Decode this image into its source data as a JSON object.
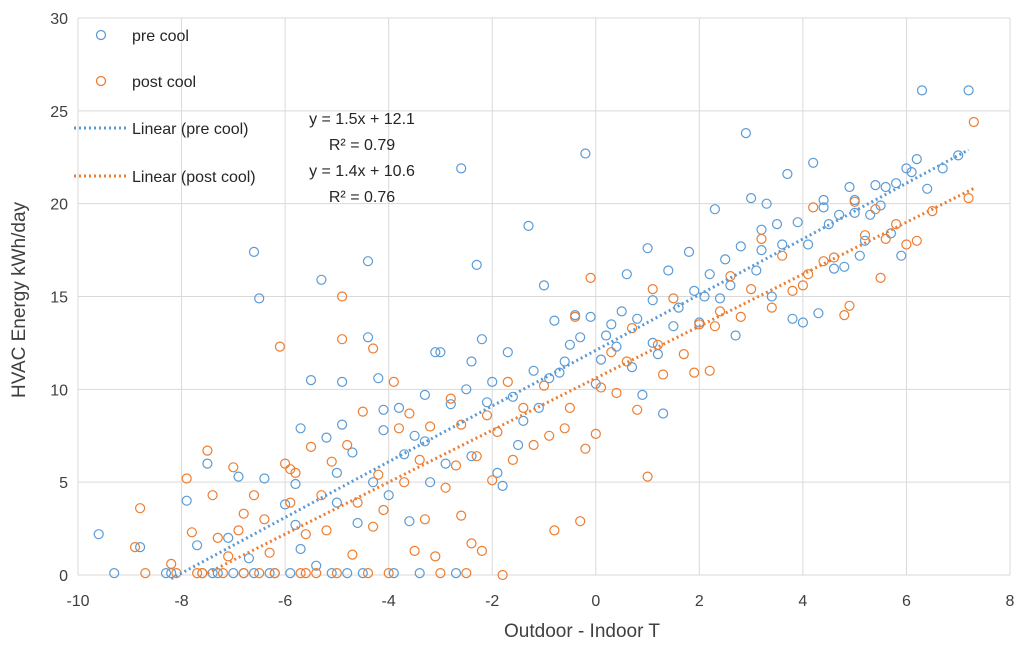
{
  "chart_data": {
    "type": "scatter",
    "title": "",
    "xlabel": "Outdoor - Indoor T",
    "ylabel": "HVAC Energy kWh/day",
    "xlim": [
      -10,
      8
    ],
    "ylim": [
      0,
      30
    ],
    "xticks": [
      -10,
      -8,
      -6,
      -4,
      -2,
      0,
      2,
      4,
      6,
      8
    ],
    "yticks": [
      0,
      5,
      10,
      15,
      20,
      25,
      30
    ],
    "grid": true,
    "legend_position": "top-left",
    "series": [
      {
        "name": "pre cool",
        "color": "#5b9bd5",
        "marker": "open-circle",
        "points": [
          [
            -9.6,
            2.2
          ],
          [
            -9.3,
            0.1
          ],
          [
            -8.8,
            1.5
          ],
          [
            -8.3,
            0.1
          ],
          [
            -8.2,
            0.1
          ],
          [
            -7.9,
            4.0
          ],
          [
            -7.7,
            1.6
          ],
          [
            -7.6,
            0.1
          ],
          [
            -7.5,
            6.0
          ],
          [
            -7.3,
            0.1
          ],
          [
            -7.1,
            2.0
          ],
          [
            -7.0,
            0.1
          ],
          [
            -6.9,
            5.3
          ],
          [
            -6.8,
            0.1
          ],
          [
            -6.7,
            0.9
          ],
          [
            -6.6,
            17.4
          ],
          [
            -6.5,
            14.9
          ],
          [
            -6.4,
            5.2
          ],
          [
            -6.3,
            0.1
          ],
          [
            -6.2,
            0.1
          ],
          [
            -6.0,
            3.8
          ],
          [
            -5.9,
            0.1
          ],
          [
            -5.8,
            4.9
          ],
          [
            -5.7,
            7.9
          ],
          [
            -5.7,
            1.4
          ],
          [
            -5.5,
            10.5
          ],
          [
            -5.4,
            0.5
          ],
          [
            -5.3,
            15.9
          ],
          [
            -5.2,
            7.4
          ],
          [
            -5.1,
            0.1
          ],
          [
            -5.0,
            5.5
          ],
          [
            -4.9,
            8.1
          ],
          [
            -4.9,
            10.4
          ],
          [
            -4.8,
            0.1
          ],
          [
            -4.7,
            6.6
          ],
          [
            -4.6,
            2.8
          ],
          [
            -4.5,
            0.1
          ],
          [
            -4.4,
            16.9
          ],
          [
            -4.4,
            12.8
          ],
          [
            -4.3,
            5.0
          ],
          [
            -4.2,
            10.6
          ],
          [
            -4.1,
            8.9
          ],
          [
            -4.0,
            4.3
          ],
          [
            -3.9,
            0.1
          ],
          [
            -3.8,
            9.0
          ],
          [
            -3.7,
            6.5
          ],
          [
            -3.6,
            2.9
          ],
          [
            -3.5,
            7.5
          ],
          [
            -3.4,
            0.1
          ],
          [
            -3.3,
            9.7
          ],
          [
            -3.2,
            5.0
          ],
          [
            -3.1,
            12.0
          ],
          [
            -3.0,
            12.0
          ],
          [
            -2.9,
            6.0
          ],
          [
            -2.8,
            9.2
          ],
          [
            -2.7,
            0.1
          ],
          [
            -2.6,
            21.9
          ],
          [
            -2.5,
            10.0
          ],
          [
            -2.4,
            6.4
          ],
          [
            -2.3,
            16.7
          ],
          [
            -2.2,
            12.7
          ],
          [
            -2.1,
            9.3
          ],
          [
            -2.0,
            10.4
          ],
          [
            -1.9,
            5.5
          ],
          [
            -1.8,
            4.8
          ],
          [
            -1.7,
            12.0
          ],
          [
            -1.5,
            7.0
          ],
          [
            -1.4,
            8.3
          ],
          [
            -1.3,
            18.8
          ],
          [
            -1.2,
            11.0
          ],
          [
            -1.1,
            9.0
          ],
          [
            -1.0,
            15.6
          ],
          [
            -0.9,
            10.6
          ],
          [
            -0.8,
            13.7
          ],
          [
            -0.6,
            11.5
          ],
          [
            -0.5,
            12.4
          ],
          [
            -0.4,
            14.0
          ],
          [
            -0.3,
            12.8
          ],
          [
            -0.2,
            22.7
          ],
          [
            -0.1,
            13.9
          ],
          [
            0.0,
            10.3
          ],
          [
            0.1,
            11.6
          ],
          [
            0.3,
            13.5
          ],
          [
            0.4,
            12.3
          ],
          [
            0.5,
            14.2
          ],
          [
            0.6,
            16.2
          ],
          [
            0.7,
            11.2
          ],
          [
            0.8,
            13.8
          ],
          [
            0.9,
            9.7
          ],
          [
            1.0,
            17.6
          ],
          [
            1.1,
            14.8
          ],
          [
            1.2,
            11.9
          ],
          [
            1.3,
            8.7
          ],
          [
            1.4,
            16.4
          ],
          [
            1.5,
            13.4
          ],
          [
            1.6,
            14.4
          ],
          [
            1.8,
            17.4
          ],
          [
            1.9,
            15.3
          ],
          [
            2.0,
            13.6
          ],
          [
            2.2,
            16.2
          ],
          [
            2.3,
            19.7
          ],
          [
            2.4,
            14.9
          ],
          [
            2.5,
            17.0
          ],
          [
            2.6,
            15.6
          ],
          [
            2.7,
            12.9
          ],
          [
            2.8,
            17.7
          ],
          [
            2.9,
            23.8
          ],
          [
            3.0,
            20.3
          ],
          [
            3.1,
            16.4
          ],
          [
            3.2,
            18.6
          ],
          [
            3.3,
            20.0
          ],
          [
            3.4,
            15.0
          ],
          [
            3.5,
            18.9
          ],
          [
            3.6,
            17.8
          ],
          [
            3.7,
            21.6
          ],
          [
            3.8,
            13.8
          ],
          [
            3.9,
            19.0
          ],
          [
            4.0,
            13.6
          ],
          [
            4.1,
            17.8
          ],
          [
            4.2,
            22.2
          ],
          [
            4.3,
            14.1
          ],
          [
            4.4,
            20.2
          ],
          [
            4.5,
            18.9
          ],
          [
            4.6,
            16.5
          ],
          [
            4.7,
            19.4
          ],
          [
            4.8,
            16.6
          ],
          [
            4.9,
            20.9
          ],
          [
            5.0,
            19.5
          ],
          [
            5.1,
            17.2
          ],
          [
            5.2,
            18.0
          ],
          [
            5.3,
            19.4
          ],
          [
            5.4,
            21.0
          ],
          [
            5.5,
            19.9
          ],
          [
            5.6,
            20.9
          ],
          [
            5.7,
            18.4
          ],
          [
            5.8,
            21.1
          ],
          [
            5.9,
            17.2
          ],
          [
            6.0,
            21.9
          ],
          [
            6.1,
            21.7
          ],
          [
            6.2,
            22.4
          ],
          [
            6.3,
            26.1
          ],
          [
            6.4,
            20.8
          ],
          [
            6.7,
            21.9
          ],
          [
            7.0,
            22.6
          ],
          [
            7.2,
            26.1
          ],
          [
            5.0,
            20.2
          ],
          [
            4.4,
            19.8
          ],
          [
            3.2,
            17.5
          ],
          [
            2.1,
            15.0
          ],
          [
            1.1,
            12.5
          ],
          [
            0.2,
            12.9
          ],
          [
            -0.7,
            10.9
          ],
          [
            -1.6,
            9.6
          ],
          [
            -2.4,
            11.5
          ],
          [
            -3.3,
            7.2
          ],
          [
            -4.1,
            7.8
          ],
          [
            -5.0,
            3.9
          ],
          [
            -5.8,
            2.7
          ],
          [
            -6.6,
            0.1
          ],
          [
            -7.4,
            0.1
          ]
        ]
      },
      {
        "name": "post cool",
        "color": "#ed7d31",
        "marker": "open-circle",
        "points": [
          [
            -8.9,
            1.5
          ],
          [
            -8.8,
            3.6
          ],
          [
            -8.7,
            0.1
          ],
          [
            -8.2,
            0.6
          ],
          [
            -8.1,
            0.1
          ],
          [
            -7.9,
            5.2
          ],
          [
            -7.8,
            2.3
          ],
          [
            -7.7,
            0.1
          ],
          [
            -7.5,
            6.7
          ],
          [
            -7.4,
            4.3
          ],
          [
            -7.3,
            2.0
          ],
          [
            -7.2,
            0.1
          ],
          [
            -7.1,
            1.0
          ],
          [
            -7.0,
            5.8
          ],
          [
            -6.9,
            2.4
          ],
          [
            -6.8,
            0.1
          ],
          [
            -6.6,
            4.3
          ],
          [
            -6.5,
            0.1
          ],
          [
            -6.4,
            3.0
          ],
          [
            -6.3,
            1.2
          ],
          [
            -6.2,
            0.1
          ],
          [
            -6.1,
            12.3
          ],
          [
            -6.0,
            6.0
          ],
          [
            -5.9,
            3.9
          ],
          [
            -5.8,
            5.5
          ],
          [
            -5.7,
            0.1
          ],
          [
            -5.6,
            2.2
          ],
          [
            -5.5,
            6.9
          ],
          [
            -5.4,
            0.1
          ],
          [
            -5.3,
            4.3
          ],
          [
            -5.2,
            2.4
          ],
          [
            -5.1,
            6.1
          ],
          [
            -5.0,
            0.1
          ],
          [
            -4.9,
            15.0
          ],
          [
            -4.9,
            12.7
          ],
          [
            -4.8,
            7.0
          ],
          [
            -4.7,
            1.1
          ],
          [
            -4.6,
            3.9
          ],
          [
            -4.5,
            8.8
          ],
          [
            -4.4,
            0.1
          ],
          [
            -4.3,
            12.2
          ],
          [
            -4.2,
            5.4
          ],
          [
            -4.1,
            3.5
          ],
          [
            -4.0,
            0.1
          ],
          [
            -3.9,
            10.4
          ],
          [
            -3.8,
            7.9
          ],
          [
            -3.7,
            5.0
          ],
          [
            -3.6,
            8.7
          ],
          [
            -3.5,
            1.3
          ],
          [
            -3.4,
            6.2
          ],
          [
            -3.3,
            3.0
          ],
          [
            -3.2,
            8.0
          ],
          [
            -3.1,
            1.0
          ],
          [
            -3.0,
            0.1
          ],
          [
            -2.9,
            4.7
          ],
          [
            -2.8,
            9.5
          ],
          [
            -2.7,
            5.9
          ],
          [
            -2.6,
            8.1
          ],
          [
            -2.5,
            0.1
          ],
          [
            -2.4,
            1.7
          ],
          [
            -2.3,
            6.4
          ],
          [
            -2.2,
            1.3
          ],
          [
            -2.1,
            8.6
          ],
          [
            -2.0,
            5.1
          ],
          [
            -1.9,
            7.7
          ],
          [
            -1.8,
            0.0
          ],
          [
            -1.7,
            10.4
          ],
          [
            -1.6,
            6.2
          ],
          [
            -1.4,
            9.0
          ],
          [
            -1.2,
            7.0
          ],
          [
            -1.0,
            10.2
          ],
          [
            -0.8,
            2.4
          ],
          [
            -0.6,
            7.9
          ],
          [
            -0.5,
            9.0
          ],
          [
            -0.4,
            13.9
          ],
          [
            -0.3,
            2.9
          ],
          [
            -0.2,
            6.8
          ],
          [
            -0.1,
            16.0
          ],
          [
            0.0,
            7.6
          ],
          [
            0.1,
            10.1
          ],
          [
            0.3,
            12.0
          ],
          [
            0.4,
            9.8
          ],
          [
            0.6,
            11.5
          ],
          [
            0.8,
            8.9
          ],
          [
            1.0,
            5.3
          ],
          [
            1.1,
            15.4
          ],
          [
            1.2,
            12.4
          ],
          [
            1.3,
            10.8
          ],
          [
            1.5,
            14.9
          ],
          [
            1.7,
            11.9
          ],
          [
            1.9,
            10.9
          ],
          [
            2.0,
            13.5
          ],
          [
            2.2,
            11.0
          ],
          [
            2.4,
            14.2
          ],
          [
            2.6,
            16.1
          ],
          [
            2.8,
            13.9
          ],
          [
            3.0,
            15.4
          ],
          [
            3.2,
            18.1
          ],
          [
            3.4,
            14.4
          ],
          [
            3.6,
            17.2
          ],
          [
            3.8,
            15.3
          ],
          [
            4.0,
            15.6
          ],
          [
            4.2,
            19.8
          ],
          [
            4.4,
            16.9
          ],
          [
            4.6,
            17.1
          ],
          [
            4.8,
            14.0
          ],
          [
            4.9,
            14.5
          ],
          [
            5.0,
            20.1
          ],
          [
            5.2,
            18.3
          ],
          [
            5.4,
            19.7
          ],
          [
            5.6,
            18.1
          ],
          [
            5.8,
            18.9
          ],
          [
            6.0,
            17.8
          ],
          [
            6.2,
            18.0
          ],
          [
            6.5,
            19.6
          ],
          [
            7.2,
            20.3
          ],
          [
            7.3,
            24.4
          ],
          [
            5.5,
            16.0
          ],
          [
            4.1,
            16.2
          ],
          [
            2.3,
            13.4
          ],
          [
            0.7,
            13.3
          ],
          [
            -0.9,
            7.5
          ],
          [
            -2.6,
            3.2
          ],
          [
            -4.3,
            2.6
          ],
          [
            -5.9,
            5.7
          ],
          [
            -6.8,
            3.3
          ],
          [
            -7.6,
            0.1
          ],
          [
            -5.6,
            0.1
          ]
        ]
      }
    ],
    "trendlines": [
      {
        "name": "Linear (pre cool)",
        "slope": 1.5,
        "intercept": 12.1,
        "x_range": [
          -8.2,
          7.2
        ],
        "color": "#5b9bd5",
        "equation": "y = 1.5x + 12.1",
        "r2": "R² = 0.79"
      },
      {
        "name": "Linear (post cool)",
        "slope": 1.4,
        "intercept": 10.6,
        "x_range": [
          -7.5,
          7.3
        ],
        "color": "#ed7d31",
        "equation": "y = 1.4x + 10.6",
        "r2": "R² = 0.76"
      }
    ]
  }
}
